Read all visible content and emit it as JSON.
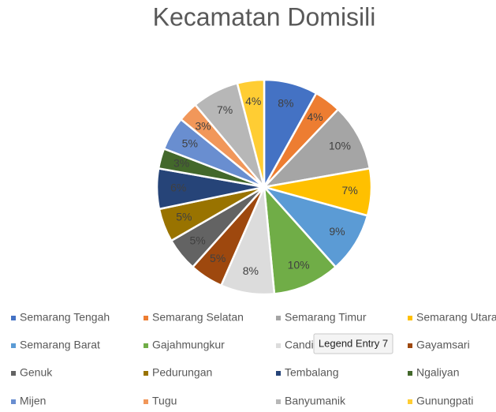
{
  "chart_data": {
    "type": "pie",
    "title": "Kecamatan Domisili",
    "categories": [
      "Semarang Tengah",
      "Semarang Selatan",
      "Semarang Timur",
      "Semarang Utara",
      "Semarang Barat",
      "Gajahmungkur",
      "Candisari",
      "Gayamsari",
      "Genuk",
      "Pedurungan",
      "Tembalang",
      "Ngaliyan",
      "Mijen",
      "Tugu",
      "Banyumanik",
      "Gunungpati"
    ],
    "values": [
      8,
      4,
      10,
      7,
      9,
      10,
      8,
      5,
      5,
      5,
      6,
      3,
      5,
      3,
      7,
      4
    ],
    "value_labels": [
      "8%",
      "4%",
      "10%",
      "7%",
      "9%",
      "10%",
      "8%",
      "5%",
      "5%",
      "5%",
      "6%",
      "3%",
      "5%",
      "3%",
      "7%",
      "4%"
    ],
    "colors": [
      "#4472c4",
      "#ed7d31",
      "#a5a5a5",
      "#ffc000",
      "#5b9bd5",
      "#70ad47",
      "#dcdcdc",
      "#9e480e",
      "#636363",
      "#997300",
      "#264478",
      "#43682b",
      "#698ed0",
      "#f1975a",
      "#b7b7b7",
      "#ffcd33"
    ],
    "legend": "bottom"
  },
  "tooltip": "Legend Entry 7"
}
